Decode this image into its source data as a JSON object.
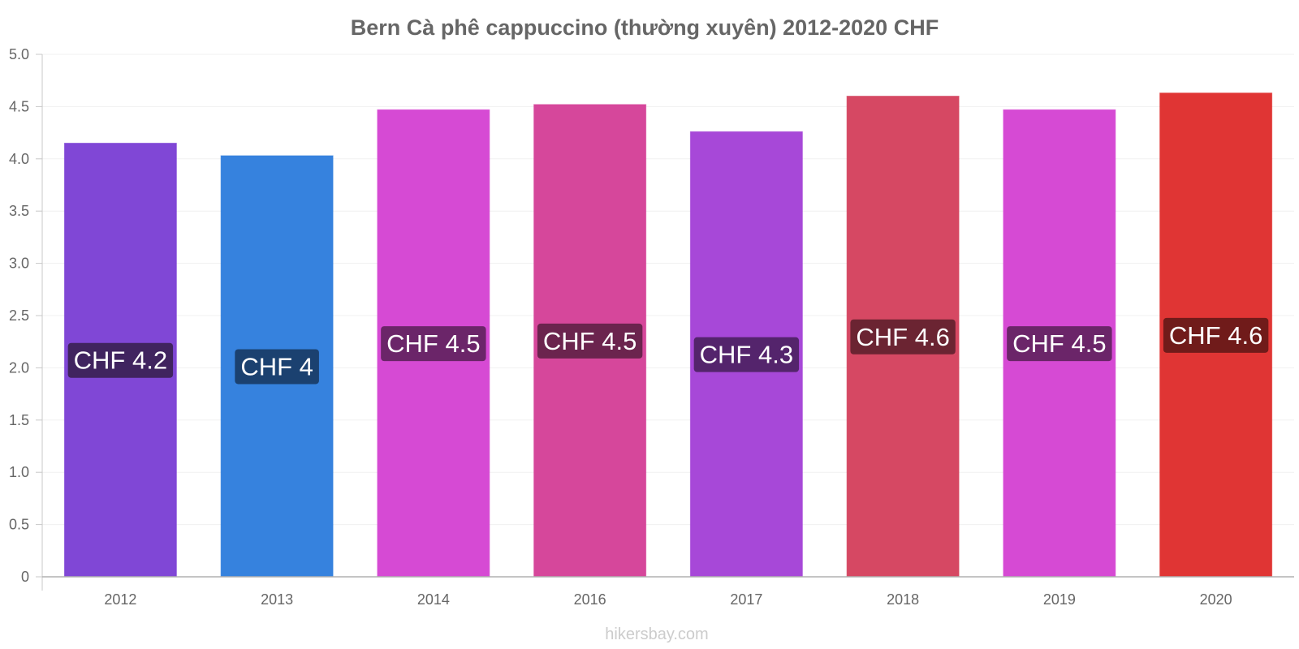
{
  "chart_data": {
    "type": "bar",
    "title": "Bern Cà phê cappuccino (thường xuyên) 2012-2020 CHF",
    "xlabel": "",
    "ylabel": "",
    "ylim": [
      0,
      5
    ],
    "ytick_labels": [
      "0",
      "0.5",
      "1.0",
      "1.5",
      "2.0",
      "2.5",
      "3.0",
      "3.5",
      "4.0",
      "4.5",
      "5.0"
    ],
    "grid": true,
    "categories": [
      "2012",
      "2013",
      "2014",
      "2016",
      "2017",
      "2018",
      "2019",
      "2020"
    ],
    "values": [
      4.15,
      4.03,
      4.47,
      4.52,
      4.26,
      4.6,
      4.47,
      4.63
    ],
    "data_labels": [
      "CHF 4.2",
      "CHF 4",
      "CHF 4.5",
      "CHF 4.5",
      "CHF 4.3",
      "CHF 4.6",
      "CHF 4.5",
      "CHF 4.6"
    ],
    "bar_colors": [
      "#8047d6",
      "#3682de",
      "#d64ad4",
      "#d6479b",
      "#a748d8",
      "#d64863",
      "#d64ad4",
      "#e03534"
    ],
    "label_bg_colors": [
      "#40245f",
      "#1b4170",
      "#6b2569",
      "#6b244e",
      "#54246c",
      "#6b2432",
      "#6b2569",
      "#701b1a"
    ]
  },
  "watermark": "hikersbay.com"
}
